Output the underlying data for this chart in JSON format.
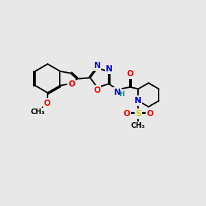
{
  "bg_color": "#e8e8e8",
  "bond_color": "#000000",
  "bond_width": 1.5,
  "atom_colors": {
    "C": "#000000",
    "N": "#0000ff",
    "O": "#ff0000",
    "S": "#cccc00",
    "H": "#008888"
  },
  "font_size": 8.5
}
